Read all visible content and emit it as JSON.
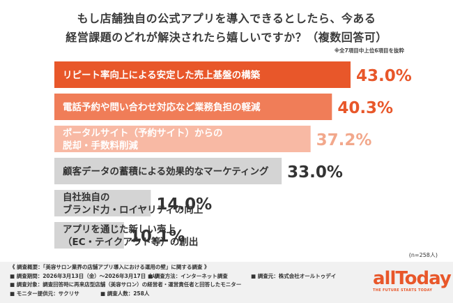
{
  "title_line1": "もし店舗独自の公式アプリを導入できるとしたら、今ある",
  "title_line2": "経営課題のどれが解決されたら嬉しいですか？（複数回答可）",
  "note": "※全7項目中上位6項目を抜粋",
  "sample_size": "(n=258人)",
  "colors": {
    "bar1": "#e8572a",
    "bar2": "#f07d58",
    "bar3": "#f8b9a4",
    "bar_gray": "#d4d4d4",
    "value_orange": "#e8572a",
    "value_light": "#f2a88c",
    "value_dark": "#333333"
  },
  "chart_data": {
    "type": "bar",
    "orientation": "horizontal",
    "categories": [
      [
        "リピート率向上による安定した売上基盤の構築"
      ],
      [
        "電話予約や問い合わせ対応など業務負担の軽減"
      ],
      [
        "ポータルサイト（予約サイト）からの",
        "脱却・手数料削減"
      ],
      [
        "顧客データの蓄積による効果的なマーケティング"
      ],
      [
        "自社独自の",
        "ブランド力・ロイヤリティの向上"
      ],
      [
        "アプリを通じた新しい売上",
        "（EC・テイクアウト等）の創出"
      ]
    ],
    "values": [
      43.0,
      40.3,
      37.2,
      33.0,
      14.0,
      10.1
    ],
    "value_labels": [
      "43.0%",
      "40.3%",
      "37.2%",
      "33.0%",
      "14.0%",
      "10.1%"
    ],
    "unit": "%"
  },
  "footer": {
    "line1": "《 調査概要：「美容サロン業界の店舗アプリ導入における運用の壁」に関する調査 》",
    "line2": [
      "■ 調査期間：2026年3月13日（金）〜2026年3月17日（火）",
      "■ 調査方法：インターネット調査",
      "■ 調査元：株式会社オールトゥデイ"
    ],
    "line3": "■ 調査対象：調査回答時に再来店型店舗（美容サロン）の経営者・運営責任者と回答したモニター",
    "line4": [
      "■ モニター提供元：サクリサ",
      "■ 調査人数：258人"
    ]
  },
  "logo": {
    "word": "allToday",
    "tagline": "THE FUTURE STARTS TODAY"
  }
}
